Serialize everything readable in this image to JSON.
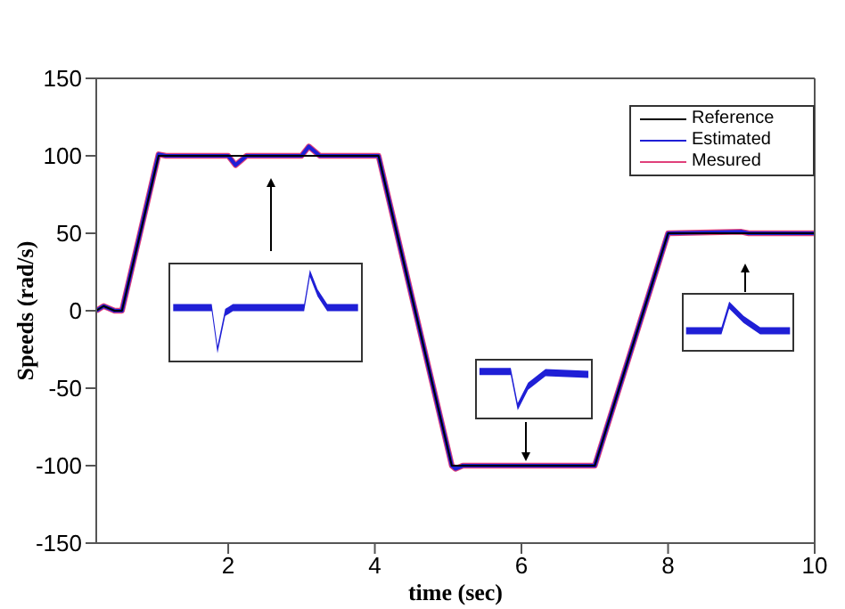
{
  "chart_data": {
    "type": "line",
    "xlabel": "time (sec)",
    "ylabel": "Speeds (rad/s)",
    "xlim": [
      0.2,
      10
    ],
    "xticks": [
      2,
      4,
      6,
      8,
      10
    ],
    "ylim": [
      -150,
      150
    ],
    "yticks": [
      -150,
      -100,
      -50,
      0,
      50,
      100,
      150
    ],
    "grid": false,
    "legend": "top right",
    "line_style": "solid",
    "marker": "none",
    "series": [
      {
        "name": "Reference",
        "color": "#000000",
        "x": [
          0.2,
          0.3,
          0.45,
          0.55,
          1.05,
          4.05,
          5.05,
          7.0,
          8.0,
          10
        ],
        "values": [
          0,
          3,
          0,
          0,
          100,
          100,
          -100,
          -100,
          50,
          50
        ]
      },
      {
        "name": "Estimated",
        "color": "#1f1fd6",
        "x": [
          0.2,
          0.3,
          0.45,
          0.55,
          1.05,
          1.15,
          2.0,
          2.1,
          2.25,
          3.0,
          3.1,
          3.25,
          4.05,
          5.05,
          5.1,
          5.2,
          6.0,
          7.0,
          8.0,
          9.0,
          9.1,
          10
        ],
        "values": [
          0,
          3,
          0,
          0,
          101,
          100,
          100,
          94,
          100,
          100,
          106,
          100,
          100,
          -100,
          -102,
          -100,
          -100,
          -100,
          50,
          51,
          50,
          50
        ]
      },
      {
        "name": "Mesured",
        "color": "#e0407a",
        "x": [
          0.2,
          0.3,
          0.45,
          0.55,
          1.05,
          1.15,
          2.0,
          2.1,
          2.25,
          3.0,
          3.1,
          3.25,
          4.05,
          5.05,
          5.1,
          5.2,
          6.0,
          7.0,
          8.0,
          9.0,
          9.1,
          10
        ],
        "values": [
          0,
          3,
          0,
          0,
          101,
          100,
          100,
          94,
          100,
          100,
          106,
          100,
          100,
          -100,
          -102,
          -100,
          -100,
          -100,
          50,
          51,
          50,
          50
        ]
      }
    ]
  }
}
